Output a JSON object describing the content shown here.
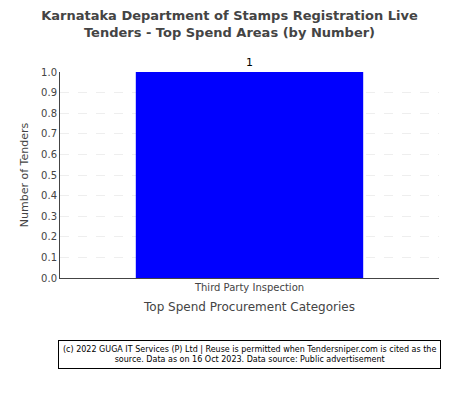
{
  "chart_data": {
    "type": "bar",
    "title": "Karnataka Department of Stamps Registration Live\nTenders - Top Spend Areas (by Number)",
    "categories": [
      "Third Party Inspection"
    ],
    "values": [
      1
    ],
    "color": "#0000FF",
    "xlabel": "Top Spend Procurement Categories",
    "ylabel": "Number of Tenders",
    "ylim": [
      0.0,
      1.0
    ],
    "yticks": [
      {
        "value": 0.0,
        "label": "0.0"
      },
      0.1,
      0.2,
      0.3,
      0.4,
      0.5,
      0.6,
      0.7,
      0.8,
      0.9,
      {
        "value": 1.0,
        "label": "1.0"
      }
    ],
    "grid": true,
    "data_labels": true,
    "footnote": "(c) 2022 GUGA IT Services (P) Ltd | Reuse is permitted when Tendersniper.com is cited as the\nsource. Data as on 16 Oct 2023. Data source: Public advertisement"
  }
}
